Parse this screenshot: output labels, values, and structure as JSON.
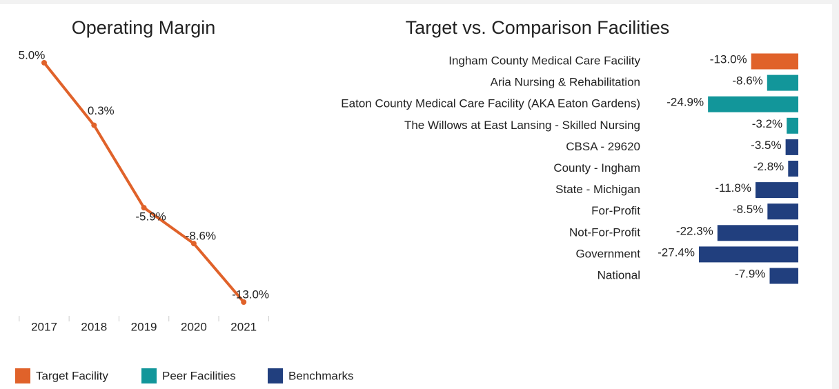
{
  "chart_data": [
    {
      "type": "line",
      "title": "Operating Margin",
      "categories": [
        "2017",
        "2018",
        "2019",
        "2020",
        "2021"
      ],
      "values": [
        5.0,
        0.3,
        -5.9,
        -8.6,
        -13.0
      ],
      "value_labels": [
        "5.0%",
        "0.3%",
        "-5.9%",
        "-8.6%",
        "-13.0%"
      ],
      "color": "#e0622a"
    },
    {
      "type": "hbar",
      "title": "Target vs. Comparison Facilities",
      "categories": [
        "Ingham County Medical Care Facility",
        "Aria Nursing & Rehabilitation",
        "Eaton County Medical Care Facility (AKA Eaton Gardens)",
        "The Willows at East Lansing - Skilled Nursing",
        "CBSA - 29620",
        "County - Ingham",
        "State - Michigan",
        "For-Profit",
        "Not-For-Profit",
        "Government",
        "National"
      ],
      "series": [
        {
          "name": "Target Facility",
          "color": "#e0622a",
          "values": [
            -13.0,
            null,
            null,
            null,
            null,
            null,
            null,
            null,
            null,
            null,
            null
          ],
          "value_labels": [
            "-13.0%",
            null,
            null,
            null,
            null,
            null,
            null,
            null,
            null,
            null,
            null
          ]
        },
        {
          "name": "Peer Facilities",
          "color": "#12969a",
          "values": [
            null,
            -8.6,
            -24.9,
            -3.2,
            null,
            null,
            null,
            null,
            null,
            null,
            null
          ],
          "value_labels": [
            null,
            "-8.6%",
            "-24.9%",
            "-3.2%",
            null,
            null,
            null,
            null,
            null,
            null,
            null
          ]
        },
        {
          "name": "Benchmarks",
          "color": "#213f7e",
          "values": [
            null,
            null,
            null,
            null,
            -3.5,
            -2.8,
            -11.8,
            -8.5,
            -22.3,
            -27.4,
            -7.9
          ],
          "value_labels": [
            null,
            null,
            null,
            null,
            "-3.5%",
            "-2.8%",
            "-11.8%",
            "-8.5%",
            "-22.3%",
            "-27.4%",
            "-7.9%"
          ]
        }
      ]
    }
  ]
}
